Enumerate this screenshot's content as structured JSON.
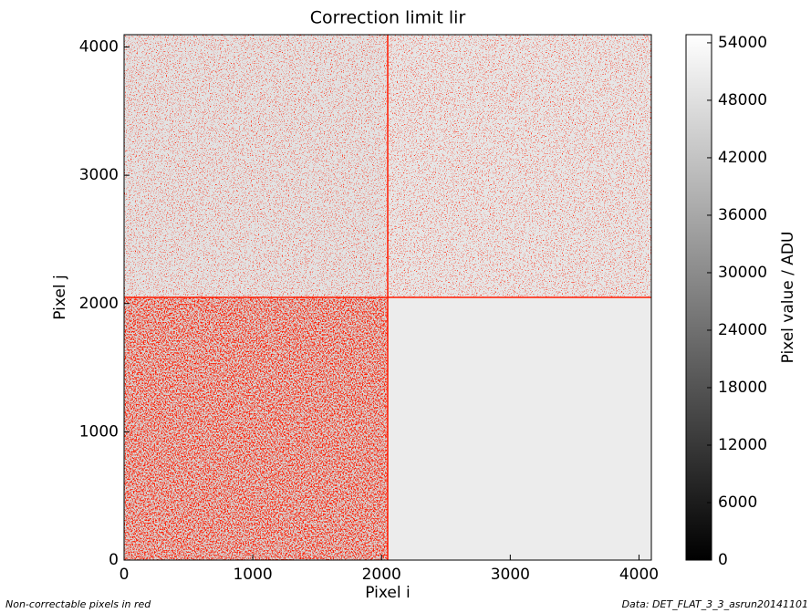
{
  "chart_data": {
    "type": "image",
    "title": "Correction limit lir",
    "xlabel": "Pixel i",
    "ylabel": "Pixel j",
    "xlim": [
      0,
      4096
    ],
    "ylim": [
      0,
      4096
    ],
    "xticks": [
      0,
      1000,
      2000,
      3000,
      4000
    ],
    "yticks": [
      0,
      1000,
      2000,
      3000,
      4000
    ],
    "colormap": "gray",
    "mask_color": "#ff1a00",
    "colorbar": {
      "label": "Pixel value / ADU",
      "lim": [
        0,
        54850
      ],
      "ticks": [
        0,
        6000,
        12000,
        18000,
        24000,
        30000,
        36000,
        42000,
        48000,
        54000
      ]
    },
    "annotations": [
      "Non-correctable pixels in red",
      "Data: DET_FLAT_3_3_asrun20141101"
    ]
  }
}
